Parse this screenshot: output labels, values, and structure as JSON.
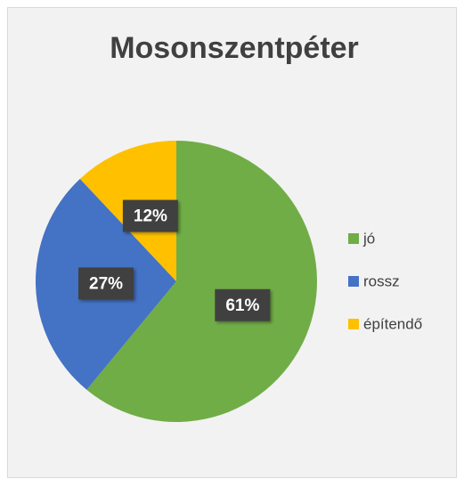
{
  "chart_data": {
    "type": "pie",
    "title": "Mosonszentpéter",
    "categories": [
      "jó",
      "rossz",
      "építendő"
    ],
    "values": [
      61,
      27,
      12
    ],
    "value_labels": [
      "61%",
      "27%",
      "12%"
    ],
    "colors": [
      "#70ad47",
      "#4472c4",
      "#ffc000"
    ],
    "legend": "right"
  }
}
